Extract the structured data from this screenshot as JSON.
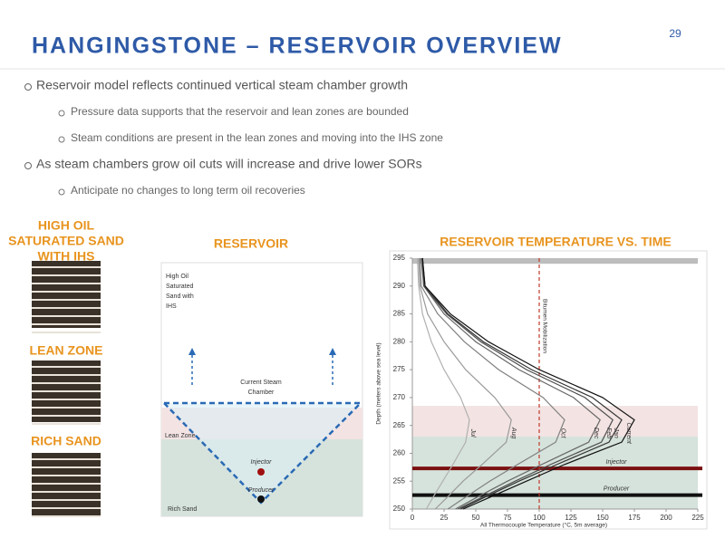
{
  "page_number": "29",
  "title": "HANGINGSTONE – RESERVOIR OVERVIEW",
  "bullets": [
    {
      "text": "Reservoir model reflects continued vertical steam chamber growth",
      "sub": [
        "Pressure data supports that the reservoir and lean zones are bounded",
        "Steam conditions are present in the lean zones and moving into the IHS zone"
      ]
    },
    {
      "text": "As steam chambers grow oil cuts will increase and drive lower SORs",
      "sub": [
        "Anticipate no changes to long term oil recoveries"
      ]
    }
  ],
  "core_samples": [
    {
      "label_lines": [
        "HIGH OIL",
        "SATURATED SAND",
        "WITH IHS"
      ]
    },
    {
      "label_lines": [
        "LEAN ZONE"
      ]
    },
    {
      "label_lines": [
        "RICH SAND"
      ]
    }
  ],
  "reservoir_diagram": {
    "title": "RESERVOIR",
    "top_zone_lines": [
      "High Oil",
      "Saturated",
      "Sand with",
      "IHS"
    ],
    "chamber_lines": [
      "Current Steam",
      "Chamber"
    ],
    "lean_zone": "Lean Zone",
    "rich_sand": "Rich Sand",
    "injector": "Injector",
    "producer": "Producer"
  },
  "chart_data": {
    "type": "line",
    "title": "RESERVOIR TEMPERATURE VS. TIME",
    "x_label": "All Thermocouple Temperature (°C, 5m average)",
    "y_label": "Depth (meters above sea level)",
    "xlim": [
      0,
      225
    ],
    "xticks": [
      0,
      25,
      50,
      75,
      100,
      125,
      150,
      175,
      200,
      225
    ],
    "ylim": [
      250,
      295
    ],
    "yticks": [
      250,
      255,
      260,
      265,
      270,
      275,
      280,
      285,
      290,
      295
    ],
    "depths": [
      295,
      290,
      285,
      280,
      275,
      270,
      266,
      262,
      258,
      255,
      252,
      250
    ],
    "series": [
      {
        "name": "Jul",
        "color": "#b0b0b0",
        "values": [
          4,
          5,
          8,
          15,
          25,
          38,
          45,
          42,
          32,
          24,
          16,
          11
        ]
      },
      {
        "name": "Aug",
        "color": "#9a9a9a",
        "values": [
          5,
          6,
          12,
          25,
          42,
          65,
          78,
          74,
          55,
          40,
          27,
          18
        ]
      },
      {
        "name": "Oct",
        "color": "#808080",
        "values": [
          6,
          7,
          20,
          41,
          68,
          103,
          120,
          113,
          83,
          61,
          41,
          28
        ]
      },
      {
        "name": "Dec",
        "color": "#666666",
        "values": [
          7,
          9,
          25,
          50,
          84,
          127,
          148,
          139,
          102,
          75,
          50,
          34
        ]
      },
      {
        "name": "Feb",
        "color": "#4d4d4d",
        "values": [
          8,
          9,
          27,
          54,
          90,
          136,
          158,
          149,
          109,
          81,
          54,
          36
        ]
      },
      {
        "name": "Jan",
        "color": "#333333",
        "values": [
          8,
          10,
          28,
          56,
          94,
          142,
          165,
          155,
          114,
          84,
          56,
          38
        ]
      },
      {
        "name": "Current",
        "color": "#111111",
        "values": [
          8,
          10,
          30,
          60,
          100,
          150,
          175,
          165,
          120,
          90,
          60,
          40
        ]
      }
    ],
    "vlines": [
      {
        "value": 100,
        "label": "Bitumen Mobilization",
        "color": "#c0392b"
      }
    ],
    "hlines": [
      {
        "value": 257.3,
        "label": "Injector",
        "color": "#7b1010"
      },
      {
        "value": 252.5,
        "label": "Producer",
        "color": "#111111"
      }
    ],
    "bands": [
      {
        "from": 263,
        "to": 268.5,
        "color": "#f3e3e3"
      },
      {
        "from": 250,
        "to": 263,
        "color": "#d6e3dc"
      },
      {
        "from": 294,
        "to": 295,
        "color": "#bdbdbd"
      }
    ]
  }
}
